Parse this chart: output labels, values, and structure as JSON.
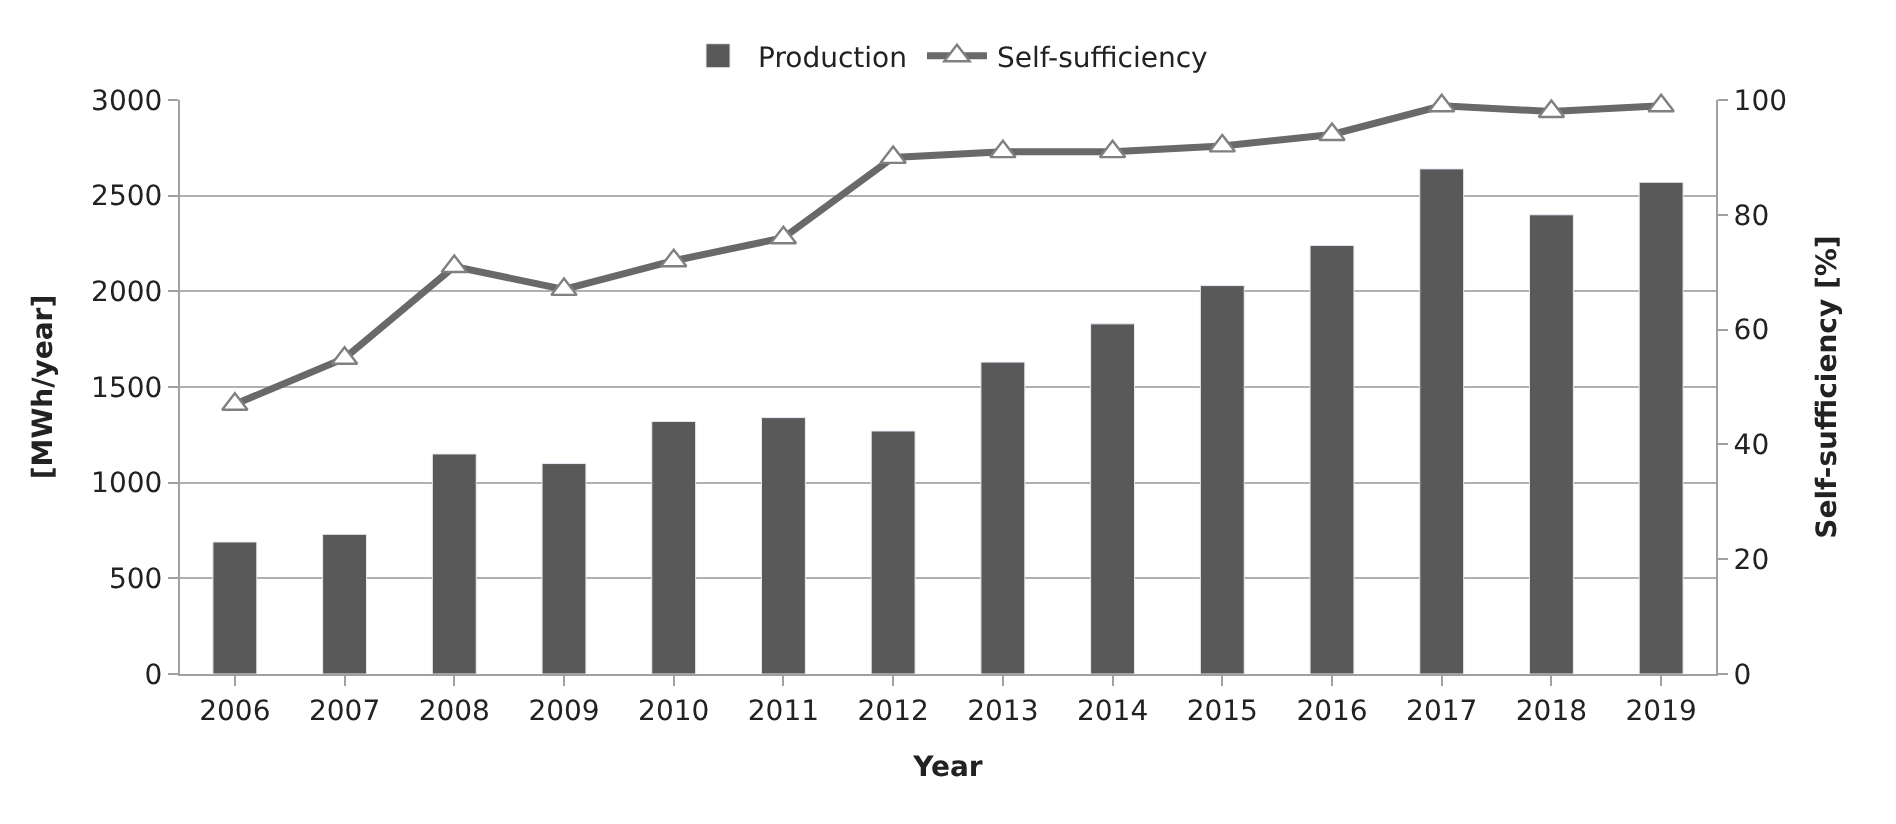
{
  "chart_data": {
    "type": "bar",
    "xlabel": "Year",
    "ylabel": "[MWh/year]",
    "y2label": "Self-sufficiency [%]",
    "categories": [
      "2006",
      "2007",
      "2008",
      "2009",
      "2010",
      "2011",
      "2012",
      "2013",
      "2014",
      "2015",
      "2016",
      "2017",
      "2018",
      "2019"
    ],
    "series": [
      {
        "name": "Production",
        "color": "#595959",
        "values": [
          690,
          730,
          1150,
          1100,
          1320,
          1340,
          1270,
          1630,
          1830,
          2030,
          2240,
          2640,
          2400,
          2570
        ]
      },
      {
        "name": "Self-sufficiency",
        "type": "line",
        "axis": "y2",
        "color": "#696969",
        "marker": "triangle",
        "values": [
          47,
          55,
          71,
          67,
          72,
          76,
          90,
          91,
          91,
          92,
          94,
          99,
          98,
          99
        ]
      }
    ],
    "ylim": [
      0,
      3000
    ],
    "yticks": [
      0,
      500,
      1000,
      1500,
      2000,
      2500,
      3000
    ],
    "y2lim": [
      0,
      100
    ],
    "y2ticks": [
      0,
      20,
      40,
      60,
      80,
      100
    ],
    "grid": "y",
    "legend": "top"
  }
}
